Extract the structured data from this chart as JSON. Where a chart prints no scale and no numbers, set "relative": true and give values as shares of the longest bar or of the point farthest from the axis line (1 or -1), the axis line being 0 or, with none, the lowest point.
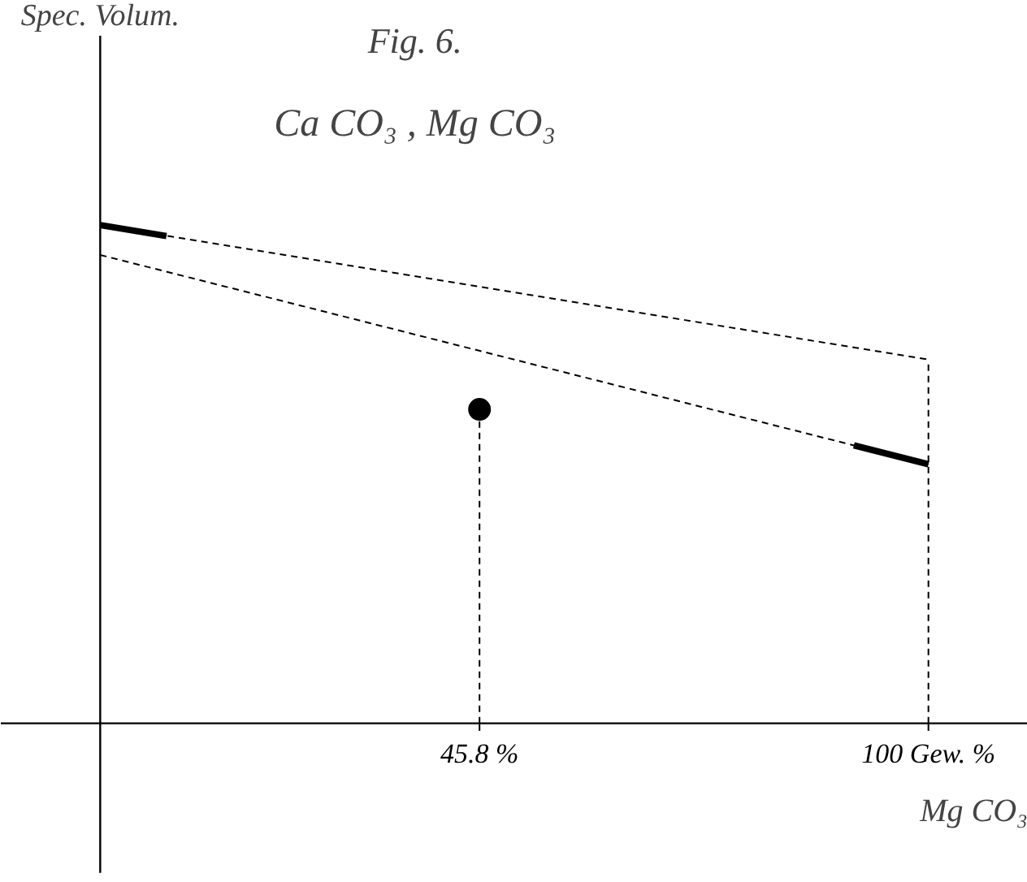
{
  "chart_data": {
    "type": "line",
    "title": "Fig. 6.",
    "subtitle": "Ca CO₃ , Mg CO₃",
    "annotations": [
      "Spec. Volum."
    ],
    "xlabel": "Mg CO₃",
    "relative": true,
    "xlim": [
      -12,
      112
    ],
    "xticks": [
      {
        "value": 45.8,
        "label": "45.8 %"
      },
      {
        "value": 100,
        "label": "100 Gew. %"
      }
    ],
    "series": [
      {
        "line_style": "dashed",
        "color": "#000000",
        "x": [
          0,
          100
        ],
        "values": [
          1,
          0.73
        ]
      },
      {
        "line_style": "dashed",
        "color": "#000000",
        "x": [
          0,
          100
        ],
        "values": [
          0.94,
          0.52
        ]
      },
      {
        "line_style": "solid",
        "color": "#000000",
        "x": [
          0,
          8
        ],
        "values": [
          1,
          0.978
        ]
      },
      {
        "line_style": "solid",
        "color": "#000000",
        "x": [
          91,
          100
        ],
        "values": [
          0.558,
          0.52
        ]
      },
      {
        "type": "scatter",
        "marker": "circle",
        "color": "#000000",
        "x": [
          45.8
        ],
        "values": [
          0.63
        ]
      }
    ],
    "ref_lines": [
      {
        "axis": "x",
        "value": 45.8,
        "line_style": "dashed"
      },
      {
        "axis": "x",
        "value": 100,
        "line_style": "dashed"
      }
    ],
    "grid": false
  }
}
